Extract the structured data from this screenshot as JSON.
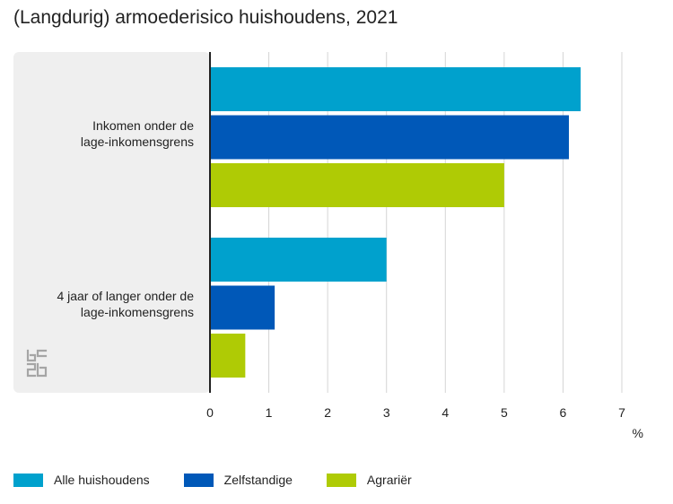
{
  "chart_data": {
    "type": "bar",
    "orientation": "horizontal",
    "title": "(Langdurig) armoederisico huishoudens, 2021",
    "categories": [
      [
        "Inkomen onder de",
        "lage-inkomensgrens"
      ],
      [
        "4 jaar of langer onder de",
        "lage-inkomensgrens"
      ]
    ],
    "series": [
      {
        "name": "Alle huishoudens",
        "color": "#00a1cd",
        "values": [
          6.3,
          3.0
        ]
      },
      {
        "name": "Zelfstandige",
        "color": "#0058b8",
        "values": [
          6.1,
          1.1
        ]
      },
      {
        "name": "Agrariër",
        "color": "#afcb05",
        "values": [
          5.0,
          0.6
        ]
      }
    ],
    "xlim": [
      0,
      7
    ],
    "xticks": [
      "0",
      "1",
      "2",
      "3",
      "4",
      "5",
      "6",
      "7"
    ],
    "xlabel": "%",
    "grid": true,
    "legend_position": "bottom"
  },
  "logo": {
    "name": "cbs-logo",
    "color": "#a5a5a5"
  }
}
